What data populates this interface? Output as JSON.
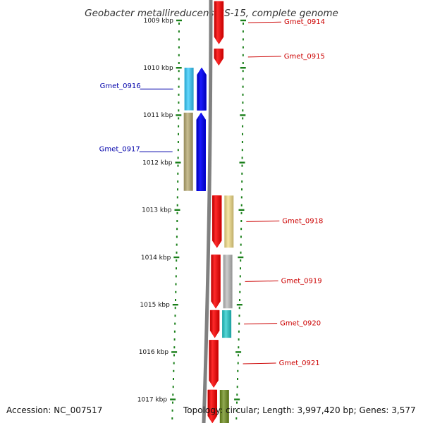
{
  "title": "Geobacter metallireducens GS-15, complete genome",
  "colors": {
    "backbone": "#808080",
    "tick": "#1a7f1a",
    "forward": "#ee0000",
    "reverse": "#0000ee",
    "label_forward": "#cc0000",
    "label_reverse": "#0000aa"
  },
  "ticks": [
    {
      "label": "1009 kbp",
      "kbp": 1009
    },
    {
      "label": "1010 kbp",
      "kbp": 1010
    },
    {
      "label": "1011 kbp",
      "kbp": 1011
    },
    {
      "label": "1012 kbp",
      "kbp": 1012
    },
    {
      "label": "1013 kbp",
      "kbp": 1013
    },
    {
      "label": "1014 kbp",
      "kbp": 1014
    },
    {
      "label": "1015 kbp",
      "kbp": 1015
    },
    {
      "label": "1016 kbp",
      "kbp": 1016
    },
    {
      "label": "1017 kbp",
      "kbp": 1017
    }
  ],
  "genes": [
    {
      "name": "Gmet_0914",
      "strand": "forward",
      "start_kbp": 1008.6,
      "end_kbp": 1009.5,
      "cog_color": "#ffffff",
      "labeled": true
    },
    {
      "name": "Gmet_0915",
      "strand": "forward",
      "start_kbp": 1009.6,
      "end_kbp": 1009.95,
      "cog_color": "#ffffff",
      "labeled": true
    },
    {
      "name": "Gmet_0916",
      "strand": "reverse",
      "start_kbp": 1010.0,
      "end_kbp": 1010.9,
      "cog_color": "#33ccff",
      "labeled": true
    },
    {
      "name": "Gmet_0917",
      "strand": "reverse",
      "start_kbp": 1010.95,
      "end_kbp": 1012.6,
      "cog_color": "#b8aa70",
      "labeled": true
    },
    {
      "name": "Gmet_0918",
      "strand": "forward",
      "start_kbp": 1012.7,
      "end_kbp": 1013.8,
      "cog_color": "#f5e08a",
      "labeled": true
    },
    {
      "name": "Gmet_0919",
      "strand": "forward",
      "start_kbp": 1013.95,
      "end_kbp": 1015.08,
      "cog_color": "#bdbdbd",
      "labeled": true
    },
    {
      "name": "Gmet_0920",
      "strand": "forward",
      "start_kbp": 1015.12,
      "end_kbp": 1015.7,
      "cog_color": "#22cccc",
      "labeled": true
    },
    {
      "name": "Gmet_0921",
      "strand": "forward",
      "start_kbp": 1015.75,
      "end_kbp": 1016.75,
      "cog_color": "#ffffff",
      "labeled": true
    },
    {
      "name": "",
      "strand": "forward",
      "start_kbp": 1016.8,
      "end_kbp": 1017.5,
      "cog_color": "#6e8f1a",
      "labeled": false
    }
  ],
  "footer": {
    "accession": "Accession: NC_007517",
    "topology": "Topology: circular; Length: 3,997,420 bp; Genes: 3,577"
  }
}
